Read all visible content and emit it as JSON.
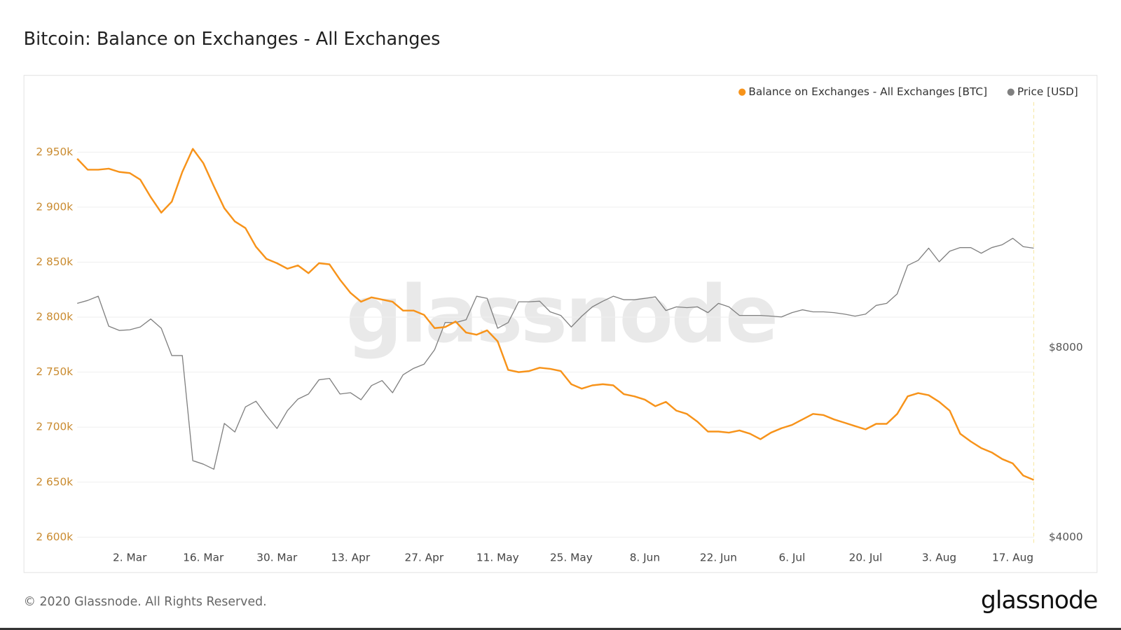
{
  "chart_data": {
    "type": "line",
    "title": "Bitcoin: Balance on Exchanges - All Exchanges",
    "watermark": "glassnode",
    "footer": "© 2020 Glassnode. All Rights Reserved.",
    "logo": "glassnode",
    "categories": [
      null,
      null,
      null,
      null,
      null,
      "2. Mar",
      null,
      null,
      null,
      null,
      null,
      null,
      "16. Mar",
      null,
      null,
      null,
      null,
      null,
      null,
      "30. Mar",
      null,
      null,
      null,
      null,
      null,
      null,
      "13. Apr",
      null,
      null,
      null,
      null,
      null,
      null,
      "27. Apr",
      null,
      null,
      null,
      null,
      null,
      null,
      "11. May",
      null,
      null,
      null,
      null,
      null,
      null,
      "25. May",
      null,
      null,
      null,
      null,
      null,
      null,
      "8. Jun",
      null,
      null,
      null,
      null,
      null,
      null,
      "22. Jun",
      null,
      null,
      null,
      null,
      null,
      null,
      "6. Jul",
      null,
      null,
      null,
      null,
      null,
      null,
      "20. Jul",
      null,
      null,
      null,
      null,
      null,
      null,
      "3. Aug",
      null,
      null,
      null,
      null,
      null,
      null,
      "17. Aug",
      null,
      null
    ],
    "series": [
      {
        "name": "Balance on Exchanges - All Exchanges [BTC]",
        "color": "#f7931a",
        "axis": "y",
        "values": [
          2944000,
          2934000,
          2934000,
          2935000,
          2932000,
          2931000,
          2925000,
          2909000,
          2895000,
          2905000,
          2932000,
          2953000,
          2940000,
          2919000,
          2899000,
          2887000,
          2881000,
          2864000,
          2853000,
          2849000,
          2844000,
          2847000,
          2840000,
          2849000,
          2848000,
          2834000,
          2822000,
          2814000,
          2818000,
          2816000,
          2814000,
          2806000,
          2806000,
          2802000,
          2790000,
          2791000,
          2796000,
          2786000,
          2784000,
          2788000,
          2778000,
          2752000,
          2750000,
          2751000,
          2754000,
          2753000,
          2751000,
          2739000,
          2735000,
          2738000,
          2739000,
          2738000,
          2730000,
          2728000,
          2725000,
          2719000,
          2723000,
          2715000,
          2712000,
          2705000,
          2696000,
          2696000,
          2695000,
          2697000,
          2694000,
          2689000,
          2695000,
          2699000,
          2702000,
          2707000,
          2712000,
          2711000,
          2707000,
          2704000,
          2701000,
          2698000,
          2703000,
          2703000,
          2712000,
          2728000,
          2731000,
          2729000,
          2723000,
          2715000,
          2694000,
          2687000,
          2681000,
          2677000,
          2671000,
          2667000,
          2656000,
          2652000
        ]
      },
      {
        "name": "Price [USD]",
        "color": "#808080",
        "axis": "y2",
        "values": [
          9408,
          9508,
          9656,
          8652,
          8520,
          8540,
          8628,
          8884,
          8588,
          7772,
          7772,
          5292,
          5224,
          5128,
          6064,
          5876,
          6440,
          6576,
          6240,
          5952,
          6356,
          6628,
          6752,
          7112,
          7148,
          6752,
          6784,
          6612,
          6964,
          7092,
          6784,
          7244,
          7416,
          7532,
          7940,
          8768,
          8768,
          8860,
          9656,
          9580,
          8588,
          8768,
          9460,
          9460,
          9480,
          9120,
          9000,
          8628,
          8976,
          9288,
          9480,
          9656,
          9532,
          9532,
          9580,
          9632,
          9164,
          9288,
          9260,
          9288,
          9092,
          9408,
          9288,
          9000,
          9000,
          9000,
          8976,
          8952,
          9092,
          9188,
          9120,
          9120,
          9092,
          9044,
          8976,
          9044,
          9336,
          9408,
          9736,
          10808,
          11008,
          11512,
          10952,
          11384,
          11536,
          11536,
          11300,
          11536,
          11656,
          11936,
          11576,
          11512
        ]
      }
    ],
    "ylim": [
      2600000,
      3000000
    ],
    "yticks": [
      {
        "value": 2600000,
        "label": "2 600k"
      },
      {
        "value": 2650000,
        "label": "2 650k"
      },
      {
        "value": 2700000,
        "label": "2 700k"
      },
      {
        "value": 2750000,
        "label": "2 750k"
      },
      {
        "value": 2800000,
        "label": "2 800k"
      },
      {
        "value": 2850000,
        "label": "2 850k"
      },
      {
        "value": 2900000,
        "label": "2 900k"
      },
      {
        "value": 2950000,
        "label": "2 950k"
      }
    ],
    "y2lim": [
      4000,
      20000
    ],
    "y2scale": "log",
    "y2ticks": [
      {
        "value": 4000,
        "label": "$4000"
      },
      {
        "value": 8000,
        "label": "$8000"
      }
    ],
    "grid": true,
    "legend": "top-right"
  }
}
